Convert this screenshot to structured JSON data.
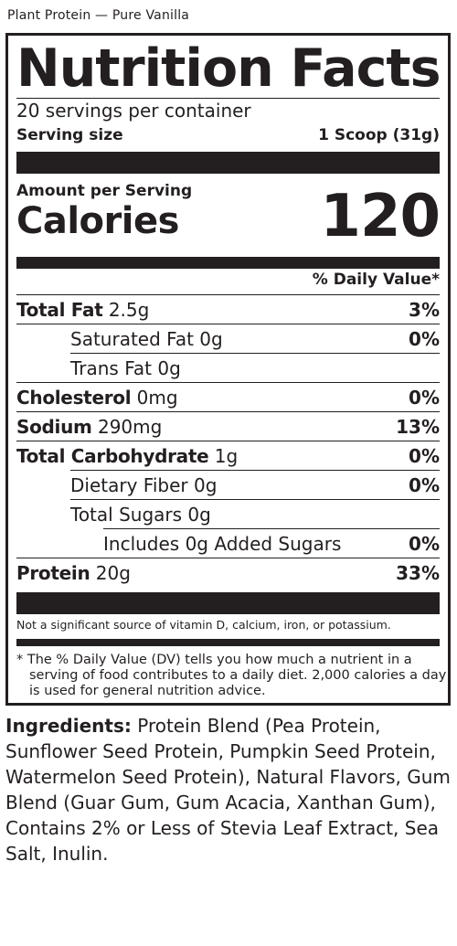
{
  "product_title": "Plant Protein — Pure Vanilla",
  "label": {
    "heading": "Nutrition Facts",
    "servings_per_container": "20 servings per container",
    "serving_size_label": "Serving size",
    "serving_size_value": "1 Scoop (31g)",
    "amount_per_serving": "Amount per Serving",
    "calories_label": "Calories",
    "calories_value": "120",
    "daily_value_header": "% Daily Value*",
    "nutrients": [
      {
        "name": "Total Fat",
        "amount": "2.5g",
        "dv": "3%"
      },
      {
        "name": "Saturated Fat",
        "amount": "0g",
        "dv": "0%"
      },
      {
        "name": "Trans Fat",
        "amount": "0g",
        "dv": ""
      },
      {
        "name": "Cholesterol",
        "amount": "0mg",
        "dv": "0%"
      },
      {
        "name": "Sodium",
        "amount": "290mg",
        "dv": "13%"
      },
      {
        "name": "Total Carbohydrate",
        "amount": "1g",
        "dv": "0%"
      },
      {
        "name": "Dietary Fiber",
        "amount": "0g",
        "dv": "0%"
      },
      {
        "name": "Total Sugars",
        "amount": "0g",
        "dv": ""
      },
      {
        "name": "Includes 0g Added Sugars",
        "amount": "",
        "dv": "0%"
      },
      {
        "name": "Protein",
        "amount": "20g",
        "dv": "33%"
      }
    ],
    "vitamin_note": "Not a significant source of vitamin D, calcium, iron, or potassium.",
    "footnote": "* The % Daily Value (DV) tells you how much a nutrient in a serving of food contributes to a daily diet. 2,000 calories a  day is used for general nutrition advice."
  },
  "ingredients": {
    "label": "Ingredients:",
    "text": "Protein Blend (Pea Protein, Sunflower Seed Protein, Pumpkin Seed Protein, Watermelon Seed Protein), Natural Flavors, Gum Blend (Guar Gum, Gum Acacia, Xanthan Gum), Contains 2% or Less of Stevia Leaf Extract, Sea Salt, Inulin."
  }
}
